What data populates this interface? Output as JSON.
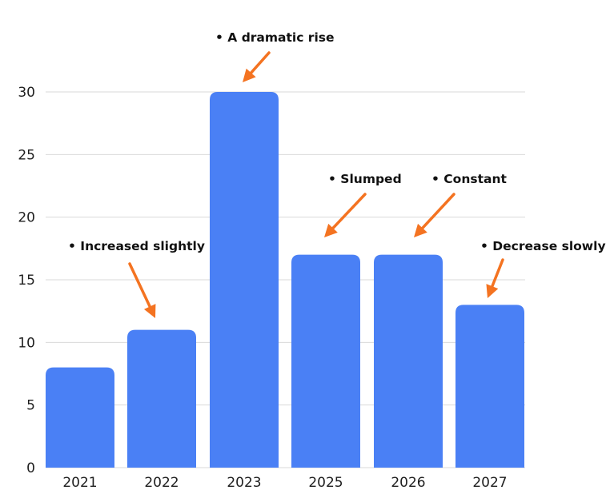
{
  "chart_data": {
    "type": "bar",
    "categories": [
      "2021",
      "2022",
      "2023",
      "2025",
      "2026",
      "2027"
    ],
    "values": [
      8,
      11,
      30,
      17,
      17,
      13
    ],
    "title": "",
    "xlabel": "",
    "ylabel": "",
    "ylim": [
      0,
      30
    ],
    "yticks": [
      "0",
      "5",
      "10",
      "15",
      "20",
      "25",
      "30"
    ],
    "grid": true,
    "bar_color": "#4a80f5",
    "annotations": [
      {
        "text": "• Increased slightly",
        "category": "2022"
      },
      {
        "text": "• A dramatic rise",
        "category": "2023"
      },
      {
        "text": "• Slumped",
        "category": "2025"
      },
      {
        "text": "• Constant",
        "category": "2026"
      },
      {
        "text": "• Decrease slowly",
        "category": "2027"
      }
    ],
    "annotation_arrow_color": "#f47321"
  }
}
